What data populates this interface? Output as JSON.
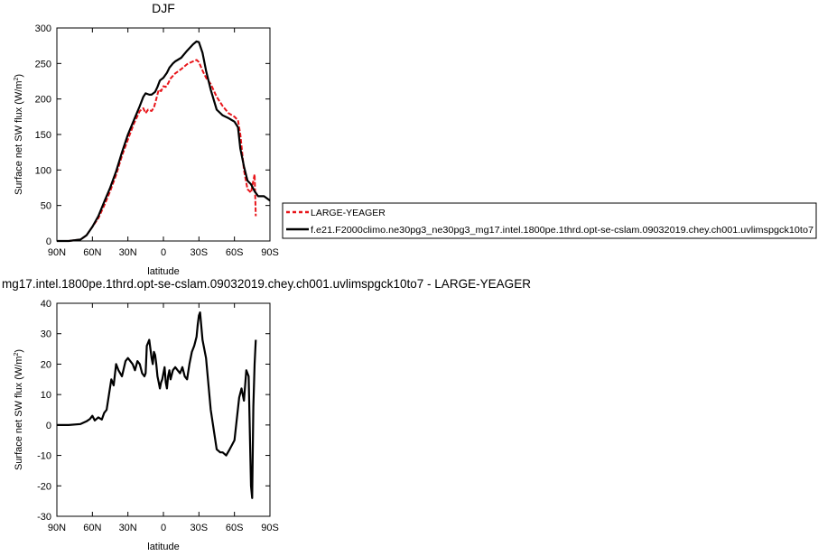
{
  "chart_data": [
    {
      "type": "line",
      "title": "DJF",
      "xlabel": "latitude",
      "ylabel": "Surface net SW flux (W/m",
      "ylabel_sup": "2",
      "ylabel_close": ")",
      "xlim": [
        90,
        -90
      ],
      "ylim": [
        0,
        300
      ],
      "xticks": [
        {
          "v": 90,
          "label": "90N"
        },
        {
          "v": 60,
          "label": "60N"
        },
        {
          "v": 30,
          "label": "30N"
        },
        {
          "v": 0,
          "label": "0"
        },
        {
          "v": -30,
          "label": "30S"
        },
        {
          "v": -60,
          "label": "60S"
        },
        {
          "v": -90,
          "label": "90S"
        }
      ],
      "yticks": [
        0,
        50,
        100,
        150,
        200,
        250,
        300
      ],
      "legend": {
        "placement": "right",
        "entries": [
          {
            "name": "LARGE-YEAGER",
            "color": "#e8151a",
            "dash": true
          },
          {
            "name": "f.e21.F2000climo.ne30pg3_ne30pg3_mg17.intel.1800pe.1thrd.opt-se-cslam.09032019.chey.ch001.uvlimspgck10to7",
            "color": "#000000",
            "dash": false
          }
        ]
      },
      "series": [
        {
          "name": "LARGE-YEAGER",
          "color": "#e8151a",
          "dash": true,
          "x": [
            90,
            80,
            70,
            65,
            60,
            55,
            50,
            45,
            40,
            35,
            30,
            25,
            20,
            17,
            15,
            13,
            10,
            8,
            6,
            4,
            2,
            0,
            -2,
            -4,
            -6,
            -10,
            -15,
            -20,
            -25,
            -28,
            -30,
            -33,
            -36,
            -40,
            -45,
            -50,
            -55,
            -60,
            -63,
            -65,
            -68,
            -71,
            -74,
            -76,
            -77,
            -78
          ],
          "y": [
            0,
            0,
            2,
            8,
            20,
            32,
            50,
            70,
            93,
            120,
            143,
            165,
            183,
            187,
            180,
            185,
            183,
            188,
            200,
            213,
            211,
            218,
            217,
            222,
            229,
            236,
            242,
            249,
            253,
            255,
            252,
            240,
            230,
            221,
            203,
            190,
            180,
            175,
            170,
            150,
            100,
            73,
            68,
            85,
            94,
            35
          ]
        },
        {
          "name": "f.e21.F2000climo.ne30pg3_ne30pg3_mg17.intel.1800pe.1thrd.opt-se-cslam.09032019.chey.ch001.uvlimspgck10to7",
          "color": "#000000",
          "dash": false,
          "x": [
            90,
            80,
            70,
            65,
            60,
            55,
            50,
            45,
            40,
            35,
            30,
            25,
            20,
            17,
            15,
            12,
            10,
            7,
            5,
            3,
            0,
            -3,
            -5,
            -8,
            -10,
            -15,
            -20,
            -25,
            -28,
            -30,
            -33,
            -36,
            -40,
            -45,
            -50,
            -55,
            -60,
            -63,
            -65,
            -68,
            -71,
            -74,
            -77,
            -80,
            -85,
            -90
          ],
          "y": [
            0,
            0,
            2,
            8,
            20,
            35,
            55,
            75,
            98,
            125,
            150,
            170,
            190,
            203,
            208,
            206,
            206,
            210,
            217,
            226,
            230,
            237,
            244,
            250,
            253,
            258,
            268,
            277,
            281,
            280,
            265,
            240,
            213,
            185,
            177,
            173,
            168,
            160,
            130,
            105,
            85,
            80,
            70,
            63,
            63,
            57
          ]
        }
      ]
    },
    {
      "type": "line",
      "title": "mg17.intel.1800pe.1thrd.opt-se-cslam.09032019.chey.ch001.uvlimspgck10to7 - LARGE-YEAGER",
      "xlabel": "latitude",
      "ylabel": "Surface net SW flux (W/m",
      "ylabel_sup": "2",
      "ylabel_close": ")",
      "xlim": [
        90,
        -90
      ],
      "ylim": [
        -30,
        40
      ],
      "xticks": [
        {
          "v": 90,
          "label": "90N"
        },
        {
          "v": 60,
          "label": "60N"
        },
        {
          "v": 30,
          "label": "30N"
        },
        {
          "v": 0,
          "label": "0"
        },
        {
          "v": -30,
          "label": "30S"
        },
        {
          "v": -60,
          "label": "60S"
        },
        {
          "v": -90,
          "label": "90S"
        }
      ],
      "yticks": [
        -30,
        -20,
        -10,
        0,
        10,
        20,
        30,
        40
      ],
      "series": [
        {
          "color": "#000000",
          "dash": false,
          "x": [
            90,
            80,
            70,
            65,
            62,
            60,
            58,
            55,
            52,
            50,
            48,
            46,
            44,
            42,
            40,
            38,
            35,
            32,
            30,
            28,
            26,
            24,
            22,
            20,
            18,
            16,
            15,
            14,
            12,
            10,
            9,
            8,
            7,
            6,
            5,
            4,
            3,
            2,
            1,
            0,
            -1,
            -2,
            -3,
            -4,
            -5,
            -6,
            -8,
            -10,
            -12,
            -14,
            -16,
            -18,
            -20,
            -22,
            -24,
            -26,
            -28,
            -29,
            -30,
            -31,
            -33,
            -36,
            -40,
            -45,
            -48,
            -50,
            -53,
            -56,
            -60,
            -62,
            -64,
            -66,
            -68,
            -70,
            -72,
            -74,
            -75,
            -76,
            -77,
            -78
          ],
          "y": [
            0,
            0,
            0.3,
            1.2,
            2,
            3,
            1.5,
            2.5,
            1.8,
            4,
            5,
            10,
            15,
            13,
            20,
            18,
            16,
            21,
            22,
            21,
            20,
            18,
            21,
            20,
            17,
            16,
            17,
            26,
            28,
            22,
            20,
            24,
            23,
            20,
            16,
            14,
            12,
            14,
            15,
            17,
            19,
            14,
            12,
            16,
            18,
            15,
            18,
            19,
            18,
            17,
            19,
            16,
            15,
            20,
            24,
            26,
            29,
            33,
            36,
            37,
            28,
            22,
            5,
            -8,
            -9,
            -9,
            -10,
            -8,
            -5,
            2,
            9,
            12,
            8,
            18,
            16,
            -20,
            -24,
            6,
            20,
            28
          ]
        }
      ]
    }
  ]
}
